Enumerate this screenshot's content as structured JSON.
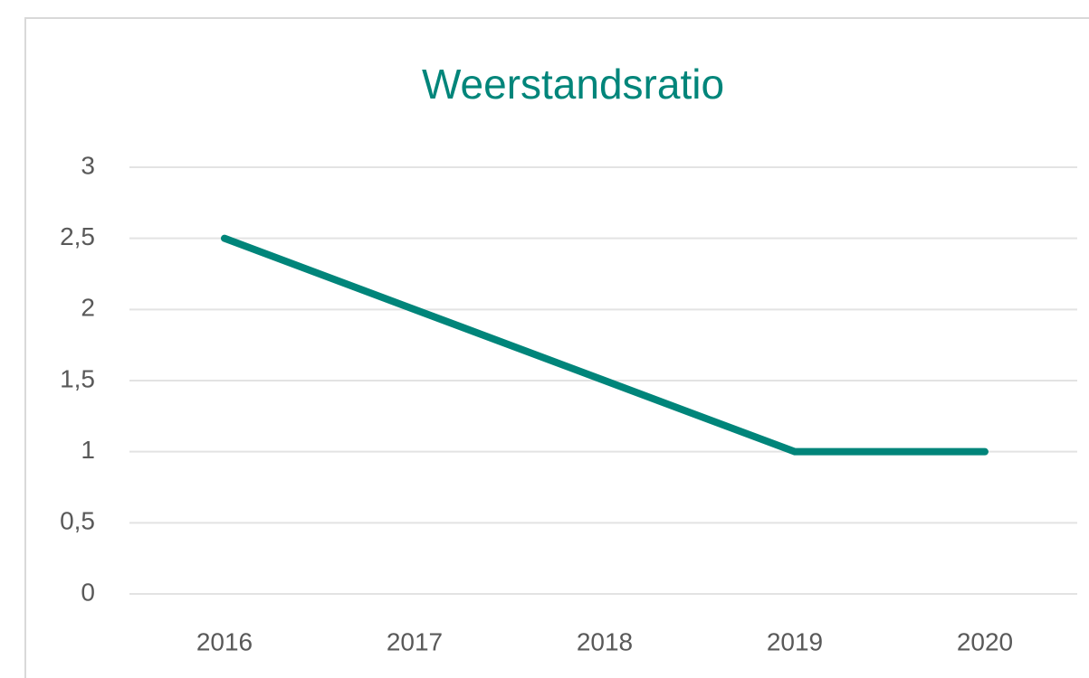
{
  "chart_data": {
    "type": "line",
    "title": "Weerstandsratio",
    "categories": [
      "2016",
      "2017",
      "2018",
      "2019",
      "2020"
    ],
    "series": [
      {
        "name": "Weerstandsratio",
        "color": "#00857a",
        "values": [
          2.5,
          2,
          1.5,
          1,
          1
        ]
      }
    ],
    "ylim": [
      0,
      3
    ],
    "yticks": [
      0,
      {
        "value": 0.5,
        "label": "0,5"
      },
      1,
      {
        "value": 1.5,
        "label": "1,5"
      },
      2,
      {
        "value": 2.5,
        "label": "2,5"
      },
      3
    ],
    "grid": true
  }
}
